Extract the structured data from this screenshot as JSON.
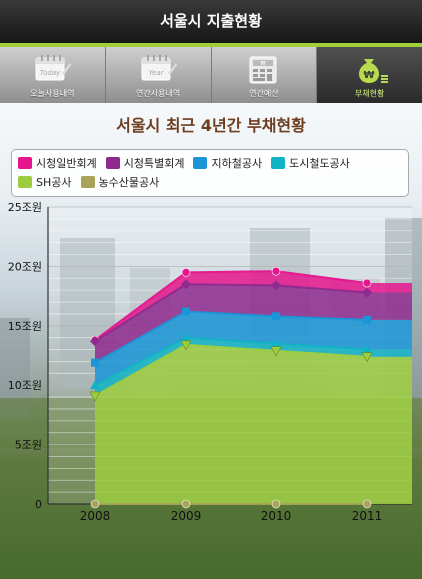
{
  "app": {
    "title": "서울시 지출현황"
  },
  "tabs": [
    {
      "label": "오늘사용내역",
      "icon": "calendar-today-icon",
      "active": false
    },
    {
      "label": "연간사용내역",
      "icon": "calendar-year-icon",
      "active": false
    },
    {
      "label": "연간예산",
      "icon": "calculator-icon",
      "active": false
    },
    {
      "label": "부채현황",
      "icon": "money-bag-icon",
      "active": true
    }
  ],
  "colors": {
    "accent": "#9fcf3a",
    "title": "#6e3d20"
  },
  "chart_data": {
    "type": "area",
    "title": "서울시 최근 4년간 부채현황",
    "categories": [
      "2008",
      "2009",
      "2010",
      "2011"
    ],
    "y_ticks": [
      "0",
      "5조원",
      "10조원",
      "15조원",
      "20조원",
      "25조원"
    ],
    "ylim": [
      0,
      25
    ],
    "unit": "조원",
    "stacked": true,
    "grid": true,
    "legend_position": "top",
    "series": [
      {
        "name": "시청일반회계",
        "color": "#e5168d",
        "marker": "circle",
        "cumulative": [
          13.8,
          19.5,
          19.6,
          18.6
        ]
      },
      {
        "name": "시청특별회계",
        "color": "#8e2a8e",
        "marker": "diamond",
        "cumulative": [
          13.7,
          18.5,
          18.4,
          17.8
        ]
      },
      {
        "name": "지하철공사",
        "color": "#1a95d7",
        "marker": "square",
        "cumulative": [
          11.9,
          16.2,
          15.8,
          15.5
        ]
      },
      {
        "name": "도시철도공사",
        "color": "#10b3c5",
        "marker": "triangle",
        "cumulative": [
          10.0,
          14.0,
          13.5,
          13.0
        ]
      },
      {
        "name": "SH공사",
        "color": "#9ccd3f",
        "marker": "triangle-down",
        "cumulative": [
          9.1,
          13.4,
          12.9,
          12.4
        ]
      },
      {
        "name": "농수산물공사",
        "color": "#a8a55a",
        "marker": "circle",
        "cumulative": [
          0,
          0,
          0,
          0
        ]
      }
    ]
  }
}
